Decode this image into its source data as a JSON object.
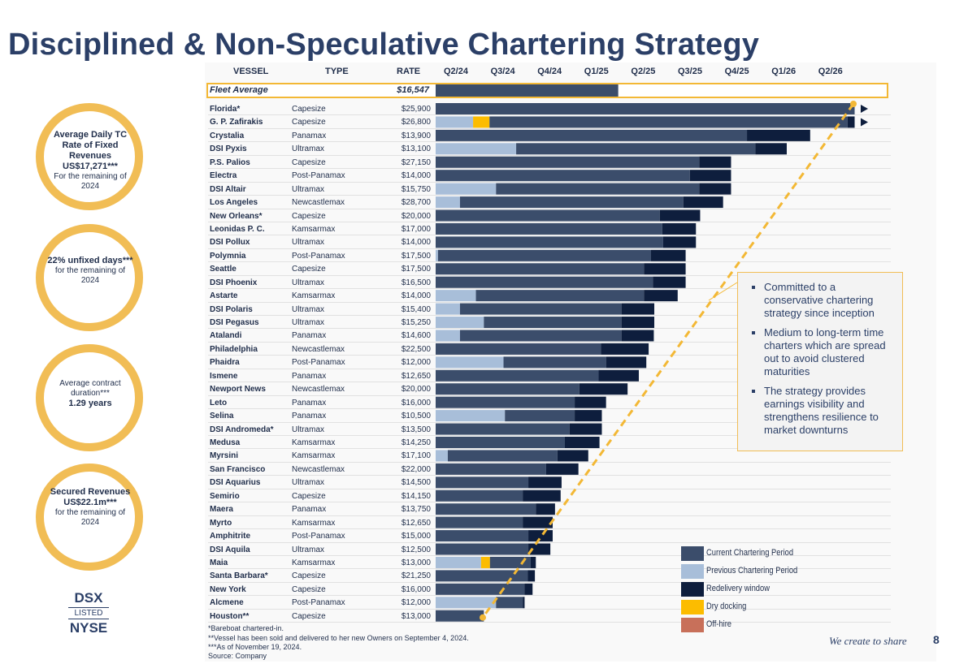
{
  "page": {
    "title": "Disciplined & Non-Speculative Chartering Strategy",
    "tagline": "We create to share",
    "page_number": "8"
  },
  "kpis": [
    {
      "bold": "Average Daily TC Rate of Fixed Revenues US$17,271***",
      "sub": "For the remaining of 2024"
    },
    {
      "bold": "22% unfixed days***",
      "sub": "for the remaining of 2024"
    },
    {
      "sub_first": "Average contract duration***",
      "bold": "1.29 years"
    },
    {
      "bold": "Secured Revenues US$22.1m***",
      "sub": "for the remaining of 2024"
    }
  ],
  "logo": {
    "top": "DSX",
    "mid": "LISTED",
    "bottom": "NYSE"
  },
  "callout": [
    "Committed to a conservative chartering strategy since inception",
    "Medium to long-term time charters which are spread out to avoid clustered maturities",
    "The strategy provides earnings visibility and strengthens resilience to market downturns"
  ],
  "footnotes": [
    "*Bareboat chartered-in.",
    "**Vessel has been sold and delivered to her new Owners on September 4, 2024.",
    "***As of November 19, 2024.",
    "Source: Company"
  ],
  "colors": {
    "current": "#3b4d6b",
    "previous": "#a8bed9",
    "redelivery": "#0e1e3d",
    "drydock": "#fcbc00",
    "offhire": "#c8705a",
    "accent": "#f3b835",
    "title": "#2b3f67"
  },
  "chart_data": {
    "type": "bar",
    "orientation": "horizontal-gantt",
    "columns": {
      "vessel": "VESSEL",
      "type": "TYPE",
      "rate": "RATE"
    },
    "x_ticks": [
      "Q2/24",
      "Q3/24",
      "Q4/24",
      "Q1/25",
      "Q2/25",
      "Q3/25",
      "Q4/25",
      "Q1/26",
      "Q2/26"
    ],
    "x_unit": "quarters from start of Q2/24",
    "legend": [
      {
        "key": "current",
        "label": "Current Chartering Period"
      },
      {
        "key": "previous",
        "label": "Previous Chartering Period"
      },
      {
        "key": "redelivery",
        "label": "Redelivery window"
      },
      {
        "key": "drydock",
        "label": "Dry docking"
      },
      {
        "key": "offhire",
        "label": "Off-hire"
      }
    ],
    "fleet_average": {
      "label": "Fleet Average",
      "rate": "$16,547",
      "end": 3.9
    },
    "rows": [
      {
        "vessel": "Florida*",
        "type": "Capesize",
        "rate": "$25,900",
        "segments": [
          {
            "k": "current",
            "s": 0,
            "e": 8.95
          }
        ],
        "arrow": true
      },
      {
        "vessel": "G. P. Zafirakis",
        "type": "Capesize",
        "rate": "$26,800",
        "segments": [
          {
            "k": "previous",
            "s": 0,
            "e": 0.8
          },
          {
            "k": "drydock",
            "s": 0.8,
            "e": 1.15
          },
          {
            "k": "current",
            "s": 1.15,
            "e": 8.8
          },
          {
            "k": "redelivery",
            "s": 8.8,
            "e": 8.95
          }
        ],
        "arrow": true
      },
      {
        "vessel": "Crystalia",
        "type": "Panamax",
        "rate": "$13,900",
        "segments": [
          {
            "k": "current",
            "s": 0,
            "e": 6.65
          },
          {
            "k": "redelivery",
            "s": 6.65,
            "e": 8.0
          }
        ]
      },
      {
        "vessel": "DSI Pyxis",
        "type": "Ultramax",
        "rate": "$13,100",
        "segments": [
          {
            "k": "previous",
            "s": 0,
            "e": 1.72
          },
          {
            "k": "current",
            "s": 1.72,
            "e": 6.83
          },
          {
            "k": "redelivery",
            "s": 6.83,
            "e": 7.5
          }
        ]
      },
      {
        "vessel": "P.S. Palios",
        "type": "Capesize",
        "rate": "$27,150",
        "segments": [
          {
            "k": "current",
            "s": 0,
            "e": 5.63
          },
          {
            "k": "redelivery",
            "s": 5.63,
            "e": 6.31
          }
        ]
      },
      {
        "vessel": "Electra",
        "type": "Post-Panamax",
        "rate": "$14,000",
        "segments": [
          {
            "k": "current",
            "s": 0,
            "e": 5.43
          },
          {
            "k": "redelivery",
            "s": 5.43,
            "e": 6.31
          }
        ]
      },
      {
        "vessel": "DSI Altair",
        "type": "Ultramax",
        "rate": "$15,750",
        "segments": [
          {
            "k": "previous",
            "s": 0,
            "e": 1.29
          },
          {
            "k": "current",
            "s": 1.29,
            "e": 5.63
          },
          {
            "k": "redelivery",
            "s": 5.63,
            "e": 6.31
          }
        ]
      },
      {
        "vessel": "Los Angeles",
        "type": "Newcastlemax",
        "rate": "$28,700",
        "segments": [
          {
            "k": "previous",
            "s": 0,
            "e": 0.52
          },
          {
            "k": "current",
            "s": 0.52,
            "e": 5.29
          },
          {
            "k": "redelivery",
            "s": 5.29,
            "e": 6.14
          }
        ]
      },
      {
        "vessel": "New Orleans*",
        "type": "Capesize",
        "rate": "$20,000",
        "segments": [
          {
            "k": "current",
            "s": 0,
            "e": 4.79
          },
          {
            "k": "redelivery",
            "s": 4.79,
            "e": 5.65
          }
        ]
      },
      {
        "vessel": "Leonidas P. C.",
        "type": "Kamsarmax",
        "rate": "$17,000",
        "segments": [
          {
            "k": "current",
            "s": 0,
            "e": 4.84
          },
          {
            "k": "redelivery",
            "s": 4.84,
            "e": 5.56
          }
        ]
      },
      {
        "vessel": "DSI Pollux",
        "type": "Ultramax",
        "rate": "$14,000",
        "segments": [
          {
            "k": "current",
            "s": 0,
            "e": 4.86
          },
          {
            "k": "redelivery",
            "s": 4.86,
            "e": 5.56
          }
        ]
      },
      {
        "vessel": "Polymnia",
        "type": "Post-Panamax",
        "rate": "$17,500",
        "segments": [
          {
            "k": "previous",
            "s": 0,
            "e": 0.05
          },
          {
            "k": "current",
            "s": 0.05,
            "e": 4.6
          },
          {
            "k": "redelivery",
            "s": 4.6,
            "e": 5.34
          }
        ]
      },
      {
        "vessel": "Seattle",
        "type": "Capesize",
        "rate": "$17,500",
        "segments": [
          {
            "k": "current",
            "s": 0,
            "e": 4.45
          },
          {
            "k": "redelivery",
            "s": 4.45,
            "e": 5.34
          }
        ]
      },
      {
        "vessel": "DSI Phoenix",
        "type": "Ultramax",
        "rate": "$16,500",
        "segments": [
          {
            "k": "current",
            "s": 0,
            "e": 4.64
          },
          {
            "k": "redelivery",
            "s": 4.64,
            "e": 5.34
          }
        ]
      },
      {
        "vessel": "Astarte",
        "type": "Kamsarmax",
        "rate": "$14,000",
        "segments": [
          {
            "k": "previous",
            "s": 0,
            "e": 0.86
          },
          {
            "k": "current",
            "s": 0.86,
            "e": 4.45
          },
          {
            "k": "redelivery",
            "s": 4.45,
            "e": 5.17
          }
        ]
      },
      {
        "vessel": "DSI Polaris",
        "type": "Ultramax",
        "rate": "$15,400",
        "segments": [
          {
            "k": "previous",
            "s": 0,
            "e": 0.52
          },
          {
            "k": "current",
            "s": 0.52,
            "e": 3.97
          },
          {
            "k": "redelivery",
            "s": 3.97,
            "e": 4.67
          }
        ]
      },
      {
        "vessel": "DSI Pegasus",
        "type": "Ultramax",
        "rate": "$15,250",
        "segments": [
          {
            "k": "previous",
            "s": 0,
            "e": 1.03
          },
          {
            "k": "current",
            "s": 1.03,
            "e": 3.97
          },
          {
            "k": "redelivery",
            "s": 3.97,
            "e": 4.67
          }
        ]
      },
      {
        "vessel": "Atalandi",
        "type": "Panamax",
        "rate": "$14,600",
        "segments": [
          {
            "k": "previous",
            "s": 0,
            "e": 0.52
          },
          {
            "k": "current",
            "s": 0.52,
            "e": 3.97
          },
          {
            "k": "redelivery",
            "s": 3.97,
            "e": 4.66
          }
        ]
      },
      {
        "vessel": "Philadelphia",
        "type": "Newcastlemax",
        "rate": "$22,500",
        "segments": [
          {
            "k": "current",
            "s": 0,
            "e": 3.53
          },
          {
            "k": "redelivery",
            "s": 3.53,
            "e": 4.55
          }
        ]
      },
      {
        "vessel": "Phaidra",
        "type": "Post-Panamax",
        "rate": "$12,000",
        "segments": [
          {
            "k": "previous",
            "s": 0,
            "e": 1.45
          },
          {
            "k": "current",
            "s": 1.45,
            "e": 3.64
          },
          {
            "k": "redelivery",
            "s": 3.64,
            "e": 4.5
          }
        ]
      },
      {
        "vessel": "Ismene",
        "type": "Panamax",
        "rate": "$12,650",
        "segments": [
          {
            "k": "current",
            "s": 0,
            "e": 3.48
          },
          {
            "k": "redelivery",
            "s": 3.48,
            "e": 4.34
          }
        ]
      },
      {
        "vessel": "Newport News",
        "type": "Newcastlemax",
        "rate": "$20,000",
        "segments": [
          {
            "k": "current",
            "s": 0,
            "e": 3.07
          },
          {
            "k": "redelivery",
            "s": 3.07,
            "e": 4.1
          }
        ]
      },
      {
        "vessel": "Leto",
        "type": "Panamax",
        "rate": "$16,000",
        "segments": [
          {
            "k": "current",
            "s": 0,
            "e": 2.97
          },
          {
            "k": "redelivery",
            "s": 2.97,
            "e": 3.64
          }
        ]
      },
      {
        "vessel": "Selina",
        "type": "Panamax",
        "rate": "$10,500",
        "segments": [
          {
            "k": "previous",
            "s": 0,
            "e": 1.48
          },
          {
            "k": "current",
            "s": 1.48,
            "e": 2.97
          },
          {
            "k": "redelivery",
            "s": 2.97,
            "e": 3.55
          }
        ]
      },
      {
        "vessel": "DSI Andromeda*",
        "type": "Ultramax",
        "rate": "$13,500",
        "segments": [
          {
            "k": "current",
            "s": 0,
            "e": 2.86
          },
          {
            "k": "redelivery",
            "s": 2.86,
            "e": 3.55
          }
        ]
      },
      {
        "vessel": "Medusa",
        "type": "Kamsarmax",
        "rate": "$14,250",
        "segments": [
          {
            "k": "current",
            "s": 0,
            "e": 2.76
          },
          {
            "k": "redelivery",
            "s": 2.76,
            "e": 3.5
          }
        ]
      },
      {
        "vessel": "Myrsini",
        "type": "Kamsarmax",
        "rate": "$17,100",
        "segments": [
          {
            "k": "previous",
            "s": 0,
            "e": 0.26
          },
          {
            "k": "current",
            "s": 0.26,
            "e": 2.6
          },
          {
            "k": "redelivery",
            "s": 2.6,
            "e": 3.26
          }
        ]
      },
      {
        "vessel": "San Francisco",
        "type": "Newcastlemax",
        "rate": "$22,000",
        "segments": [
          {
            "k": "current",
            "s": 0,
            "e": 2.36
          },
          {
            "k": "redelivery",
            "s": 2.36,
            "e": 3.05
          }
        ]
      },
      {
        "vessel": "DSI Aquarius",
        "type": "Ultramax",
        "rate": "$14,500",
        "segments": [
          {
            "k": "current",
            "s": 0,
            "e": 1.98
          },
          {
            "k": "redelivery",
            "s": 1.98,
            "e": 2.69
          }
        ]
      },
      {
        "vessel": "Semirio",
        "type": "Capesize",
        "rate": "$14,150",
        "segments": [
          {
            "k": "current",
            "s": 0,
            "e": 1.86
          },
          {
            "k": "redelivery",
            "s": 1.86,
            "e": 2.67
          }
        ]
      },
      {
        "vessel": "Maera",
        "type": "Panamax",
        "rate": "$13,750",
        "segments": [
          {
            "k": "current",
            "s": 0,
            "e": 2.14
          },
          {
            "k": "redelivery",
            "s": 2.14,
            "e": 2.55
          }
        ]
      },
      {
        "vessel": "Myrto",
        "type": "Kamsarmax",
        "rate": "$12,650",
        "segments": [
          {
            "k": "current",
            "s": 0,
            "e": 1.86
          },
          {
            "k": "redelivery",
            "s": 1.86,
            "e": 2.5
          }
        ]
      },
      {
        "vessel": "Amphitrite",
        "type": "Post-Panamax",
        "rate": "$15,000",
        "segments": [
          {
            "k": "current",
            "s": 0,
            "e": 1.98
          },
          {
            "k": "redelivery",
            "s": 1.98,
            "e": 2.5
          }
        ]
      },
      {
        "vessel": "DSI Aquila",
        "type": "Ultramax",
        "rate": "$12,500",
        "segments": [
          {
            "k": "current",
            "s": 0,
            "e": 1.98
          },
          {
            "k": "redelivery",
            "s": 1.98,
            "e": 2.45
          }
        ]
      },
      {
        "vessel": "Maia",
        "type": "Kamsarmax",
        "rate": "$13,000",
        "segments": [
          {
            "k": "previous",
            "s": 0,
            "e": 0.97
          },
          {
            "k": "drydock",
            "s": 0.97,
            "e": 1.16
          },
          {
            "k": "current",
            "s": 1.16,
            "e": 2.03
          },
          {
            "k": "redelivery",
            "s": 2.03,
            "e": 2.14
          }
        ]
      },
      {
        "vessel": "Santa Barbara*",
        "type": "Capesize",
        "rate": "$21,250",
        "segments": [
          {
            "k": "current",
            "s": 0,
            "e": 1.97
          },
          {
            "k": "redelivery",
            "s": 1.97,
            "e": 2.12
          }
        ]
      },
      {
        "vessel": "New York",
        "type": "Capesize",
        "rate": "$16,000",
        "segments": [
          {
            "k": "current",
            "s": 0,
            "e": 1.9
          },
          {
            "k": "redelivery",
            "s": 1.9,
            "e": 2.07
          }
        ]
      },
      {
        "vessel": "Alcmene",
        "type": "Post-Panamax",
        "rate": "$12,000",
        "segments": [
          {
            "k": "previous",
            "s": 0,
            "e": 1.29
          },
          {
            "k": "current",
            "s": 1.29,
            "e": 1.86
          },
          {
            "k": "redelivery",
            "s": 1.86,
            "e": 1.9
          }
        ]
      },
      {
        "vessel": "Houston**",
        "type": "Capesize",
        "rate": "$13,000",
        "segments": [
          {
            "k": "current",
            "s": 0,
            "e": 1.03
          }
        ]
      }
    ]
  }
}
